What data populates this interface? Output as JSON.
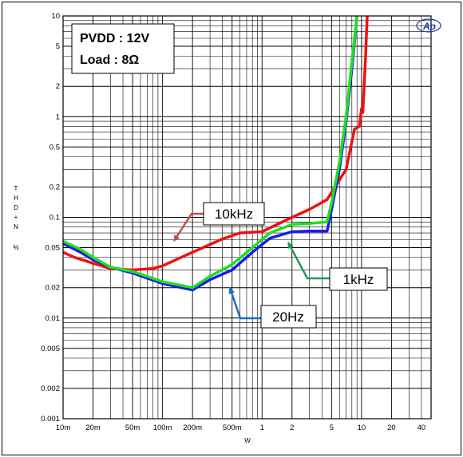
{
  "chart_data": {
    "type": "line",
    "x_scale": "log",
    "y_scale": "log",
    "xlim": [
      0.01,
      50
    ],
    "ylim": [
      0.001,
      10
    ],
    "x_ticks": [
      {
        "v": 0.01,
        "label": "10m"
      },
      {
        "v": 0.02,
        "label": "20m"
      },
      {
        "v": 0.05,
        "label": "50m"
      },
      {
        "v": 0.1,
        "label": "100m"
      },
      {
        "v": 0.2,
        "label": "200m"
      },
      {
        "v": 0.5,
        "label": "500m"
      },
      {
        "v": 1,
        "label": "1"
      },
      {
        "v": 2,
        "label": "2"
      },
      {
        "v": 5,
        "label": "5"
      },
      {
        "v": 10,
        "label": "10"
      },
      {
        "v": 20,
        "label": "20"
      },
      {
        "v": 40,
        "label": "40"
      }
    ],
    "y_ticks": [
      {
        "v": 0.001,
        "label": "0.001"
      },
      {
        "v": 0.002,
        "label": "0.002"
      },
      {
        "v": 0.005,
        "label": "0.005"
      },
      {
        "v": 0.01,
        "label": "0.01"
      },
      {
        "v": 0.02,
        "label": "0.02"
      },
      {
        "v": 0.05,
        "label": "0.05"
      },
      {
        "v": 0.1,
        "label": "0.1"
      },
      {
        "v": 0.2,
        "label": "0.2"
      },
      {
        "v": 0.5,
        "label": "0.5"
      },
      {
        "v": 1,
        "label": "1"
      },
      {
        "v": 2,
        "label": "2"
      },
      {
        "v": 5,
        "label": "5"
      },
      {
        "v": 10,
        "label": "10"
      }
    ],
    "xlabel": "W",
    "ylabel": "T H D + N",
    "ylabel_unit": "%",
    "grid": true,
    "series": [
      {
        "label": "10kHz",
        "color": "#ee1111",
        "points": [
          [
            0.01,
            0.045
          ],
          [
            0.013,
            0.04
          ],
          [
            0.02,
            0.035
          ],
          [
            0.03,
            0.031
          ],
          [
            0.05,
            0.03
          ],
          [
            0.08,
            0.031
          ],
          [
            0.1,
            0.033
          ],
          [
            0.2,
            0.045
          ],
          [
            0.4,
            0.061
          ],
          [
            0.6,
            0.07
          ],
          [
            1,
            0.072
          ],
          [
            2,
            0.1
          ],
          [
            3,
            0.12
          ],
          [
            4.5,
            0.15
          ],
          [
            7,
            0.3
          ],
          [
            8.5,
            0.75
          ],
          [
            9.5,
            0.8
          ],
          [
            10,
            1.2
          ],
          [
            10.3,
            1.1
          ],
          [
            11,
            4
          ],
          [
            11.4,
            10
          ]
        ]
      },
      {
        "label": "20Hz",
        "color": "#1a1aee",
        "points": [
          [
            0.01,
            0.055
          ],
          [
            0.015,
            0.045
          ],
          [
            0.02,
            0.038
          ],
          [
            0.03,
            0.032
          ],
          [
            0.05,
            0.028
          ],
          [
            0.1,
            0.022
          ],
          [
            0.2,
            0.019
          ],
          [
            0.3,
            0.024
          ],
          [
            0.5,
            0.03
          ],
          [
            0.8,
            0.045
          ],
          [
            1.2,
            0.062
          ],
          [
            2,
            0.072
          ],
          [
            3,
            0.073
          ],
          [
            4.5,
            0.073
          ],
          [
            5,
            0.12
          ],
          [
            6,
            0.3
          ],
          [
            7,
            0.9
          ],
          [
            8,
            3
          ],
          [
            9,
            10
          ]
        ]
      },
      {
        "label": "1kHz",
        "color": "#22dd22",
        "points": [
          [
            0.01,
            0.058
          ],
          [
            0.015,
            0.048
          ],
          [
            0.02,
            0.04
          ],
          [
            0.03,
            0.032
          ],
          [
            0.05,
            0.029
          ],
          [
            0.1,
            0.023
          ],
          [
            0.2,
            0.02
          ],
          [
            0.3,
            0.026
          ],
          [
            0.5,
            0.034
          ],
          [
            0.8,
            0.05
          ],
          [
            1.2,
            0.07
          ],
          [
            2,
            0.085
          ],
          [
            3,
            0.087
          ],
          [
            4.5,
            0.09
          ],
          [
            5,
            0.14
          ],
          [
            6,
            0.35
          ],
          [
            7,
            1
          ],
          [
            8,
            3.5
          ],
          [
            9,
            10
          ]
        ]
      }
    ],
    "annotations": [
      {
        "text": "10kHz",
        "color": "#c0504d"
      },
      {
        "text": "1kHz",
        "color": "#1e9a5a"
      },
      {
        "text": "20Hz",
        "color": "#1e6fc0"
      }
    ],
    "info_box": {
      "line1": "PVDD : 12V",
      "line2": "Load : 8Ω"
    },
    "logo_text": "Ap"
  }
}
